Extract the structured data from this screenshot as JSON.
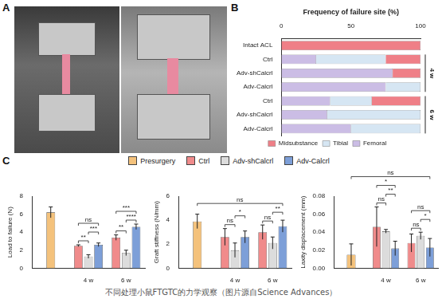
{
  "panel_labels": [
    "A",
    "B",
    "C"
  ],
  "caption": "不同处理小鼠FTGTC的力学观察（图片源自Science Advances）",
  "chart_data": [
    {
      "type": "bar",
      "orientation": "horizontal",
      "stacked": true,
      "xlabel": "Frequency of failure site (%)",
      "categories": [
        "Intact ACL",
        "Ctrl",
        "Adv-shCalcrl",
        "Adv-Calcrl",
        "Ctrl",
        "Adv-shCalcrl",
        "Adv-Calcrl"
      ],
      "series": [
        {
          "name": "Midsubstance",
          "color": "#ef7f87",
          "values": [
            100,
            25,
            20,
            0,
            35,
            0,
            0
          ]
        },
        {
          "name": "Tibial",
          "color": "#d6e6f3",
          "values": [
            0,
            50,
            0,
            25,
            30,
            67,
            50
          ]
        },
        {
          "name": "Femoral",
          "color": "#cbbde5",
          "values": [
            0,
            25,
            80,
            75,
            35,
            33,
            50
          ]
        }
      ],
      "groups": [
        {
          "label": "4 w",
          "from": 1,
          "to": 3
        },
        {
          "label": "6 w",
          "from": 4,
          "to": 6
        }
      ],
      "xlim": [
        0,
        100
      ],
      "xticks": [
        0,
        50,
        100
      ],
      "legend": "bottom",
      "grid": false
    },
    {
      "type": "bar",
      "ylabel": "Load to failure (N)",
      "categories": [
        null,
        "4 w",
        "6 w"
      ],
      "series": [
        {
          "name": "Presurgery",
          "color": "#f4c27c",
          "values": [
            6.2,
            null,
            null
          ],
          "errors": [
            0.6,
            null,
            null
          ]
        },
        {
          "name": "Ctrl",
          "color": "#f08b8b",
          "values": [
            null,
            2.5,
            3.4
          ],
          "errors": [
            null,
            0.1,
            0.3
          ]
        },
        {
          "name": "Adv-shCalcrl",
          "color": "#dcdcdc",
          "values": [
            null,
            1.3,
            1.7
          ],
          "errors": [
            null,
            0.2,
            0.3
          ]
        },
        {
          "name": "Adv-Calcrl",
          "color": "#7d9fd8",
          "values": [
            null,
            2.6,
            4.6
          ],
          "errors": [
            null,
            0.2,
            0.3
          ]
        }
      ],
      "annotations": [
        {
          "text": "**",
          "between": [
            [
              1,
              "Ctrl"
            ],
            [
              1,
              "Adv-shCalcrl"
            ]
          ]
        },
        {
          "text": "***",
          "between": [
            [
              1,
              "Adv-shCalcrl"
            ],
            [
              1,
              "Adv-Calcrl"
            ]
          ]
        },
        {
          "text": "ns",
          "between": [
            [
              1,
              "Ctrl"
            ],
            [
              1,
              "Adv-Calcrl"
            ]
          ]
        },
        {
          "text": "**",
          "between": [
            [
              2,
              "Ctrl"
            ],
            [
              2,
              "Adv-shCalcrl"
            ]
          ]
        },
        {
          "text": "****",
          "between": [
            [
              2,
              "Adv-shCalcrl"
            ],
            [
              2,
              "Adv-Calcrl"
            ]
          ]
        },
        {
          "text": "***",
          "between": [
            [
              2,
              "Ctrl"
            ],
            [
              2,
              "Adv-Calcrl"
            ]
          ]
        }
      ],
      "ylim": [
        0,
        8
      ],
      "yticks": [
        0,
        2,
        4,
        6,
        8
      ],
      "legend": "top",
      "grid": false
    },
    {
      "type": "bar",
      "ylabel": "Graft stiffness (N/mm)",
      "categories": [
        null,
        "4 w",
        "6 w"
      ],
      "series": [
        {
          "name": "Presurgery",
          "color": "#f4c27c",
          "values": [
            3.9,
            null,
            null
          ],
          "errors": [
            0.6,
            null,
            null
          ]
        },
        {
          "name": "Ctrl",
          "color": "#f08b8b",
          "values": [
            null,
            2.6,
            3.0
          ],
          "errors": [
            null,
            0.7,
            0.6
          ]
        },
        {
          "name": "Adv-shCalcrl",
          "color": "#dcdcdc",
          "values": [
            null,
            1.5,
            2.1
          ],
          "errors": [
            null,
            0.6,
            0.5
          ]
        },
        {
          "name": "Adv-Calcrl",
          "color": "#7d9fd8",
          "values": [
            null,
            2.6,
            3.5
          ],
          "errors": [
            null,
            0.5,
            0.5
          ]
        }
      ],
      "annotations": [
        {
          "text": "ns",
          "between": [
            [
              1,
              "Ctrl"
            ],
            [
              1,
              "Adv-shCalcrl"
            ]
          ]
        },
        {
          "text": "*",
          "between": [
            [
              1,
              "Adv-shCalcrl"
            ],
            [
              1,
              "Adv-Calcrl"
            ]
          ]
        },
        {
          "text": "ns",
          "between": [
            [
              2,
              "Ctrl"
            ],
            [
              2,
              "Adv-shCalcrl"
            ]
          ]
        },
        {
          "text": "**",
          "between": [
            [
              2,
              "Adv-shCalcrl"
            ],
            [
              2,
              "Adv-Calcrl"
            ]
          ]
        },
        {
          "text": "ns",
          "between": [
            [
              0,
              "Presurgery"
            ],
            [
              2,
              "Adv-Calcrl"
            ]
          ]
        }
      ],
      "ylim": [
        0,
        6
      ],
      "yticks": [
        0,
        2,
        4,
        6
      ],
      "grid": false
    },
    {
      "type": "bar",
      "ylabel": "Laxity displacement (mm)",
      "categories": [
        null,
        "4 w",
        "6 w"
      ],
      "series": [
        {
          "name": "Presurgery",
          "color": "#f4c27c",
          "values": [
            0.015,
            null,
            null
          ],
          "errors": [
            0.012,
            null,
            null
          ]
        },
        {
          "name": "Ctrl",
          "color": "#f08b8b",
          "values": [
            null,
            0.046,
            0.028
          ],
          "errors": [
            null,
            0.022,
            0.01
          ]
        },
        {
          "name": "Adv-shCalcrl",
          "color": "#dcdcdc",
          "values": [
            null,
            0.041,
            0.036
          ],
          "errors": [
            null,
            0.002,
            0.004
          ]
        },
        {
          "name": "Adv-Calcrl",
          "color": "#7d9fd8",
          "values": [
            null,
            0.022,
            0.023
          ],
          "errors": [
            null,
            0.008,
            0.01
          ]
        }
      ],
      "annotations": [
        {
          "text": "ns",
          "between": [
            [
              1,
              "Ctrl"
            ],
            [
              1,
              "Adv-shCalcrl"
            ]
          ]
        },
        {
          "text": "**",
          "between": [
            [
              1,
              "Adv-shCalcrl"
            ],
            [
              1,
              "Adv-Calcrl"
            ]
          ]
        },
        {
          "text": "*",
          "between": [
            [
              1,
              "Ctrl"
            ],
            [
              1,
              "Adv-Calcrl"
            ]
          ]
        },
        {
          "text": "ns",
          "between": [
            [
              2,
              "Ctrl"
            ],
            [
              2,
              "Adv-shCalcrl"
            ]
          ]
        },
        {
          "text": "*",
          "between": [
            [
              2,
              "Adv-shCalcrl"
            ],
            [
              2,
              "Adv-Calcrl"
            ]
          ]
        },
        {
          "text": "ns",
          "between": [
            [
              2,
              "Ctrl"
            ],
            [
              2,
              "Adv-Calcrl"
            ]
          ]
        },
        {
          "text": "ns",
          "between": [
            [
              0,
              "Presurgery"
            ],
            [
              2,
              "Adv-Calcrl"
            ]
          ]
        }
      ],
      "ylim": [
        0,
        0.08
      ],
      "yticks": [
        {
          "value": 0,
          "label": "0.00"
        },
        {
          "value": 0.02,
          "label": "0.02"
        },
        {
          "value": 0.04,
          "label": "0.04"
        },
        {
          "value": 0.06,
          "label": "0.06"
        },
        {
          "value": 0.08,
          "label": "0.08"
        }
      ],
      "grid": false
    }
  ]
}
